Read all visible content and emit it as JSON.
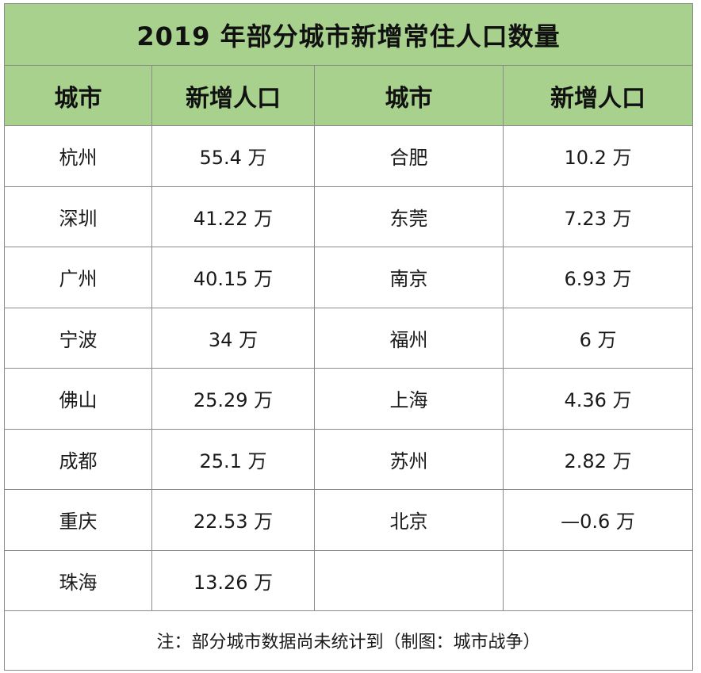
{
  "table": {
    "title": "2019 年部分城市新增常住人口数量",
    "headers": [
      "城市",
      "新增人口",
      "城市",
      "新增人口"
    ],
    "rows": [
      [
        "杭州",
        "55.4 万",
        "合肥",
        "10.2 万"
      ],
      [
        "深圳",
        "41.22 万",
        "东莞",
        "7.23 万"
      ],
      [
        "广州",
        "40.15 万",
        "南京",
        "6.93 万"
      ],
      [
        "宁波",
        "34 万",
        "福州",
        "6 万"
      ],
      [
        "佛山",
        "25.29 万",
        "上海",
        "4.36 万"
      ],
      [
        "成都",
        "25.1 万",
        "苏州",
        "2.82 万"
      ],
      [
        "重庆",
        "22.53 万",
        "北京",
        "—0.6 万"
      ],
      [
        "珠海",
        "13.26 万",
        "",
        ""
      ]
    ],
    "note": "注：部分城市数据尚未统计到（制图：城市战争）"
  },
  "colors": {
    "header_bg": "#a9d18e",
    "border": "#8c8c8c",
    "text": "#111111"
  }
}
